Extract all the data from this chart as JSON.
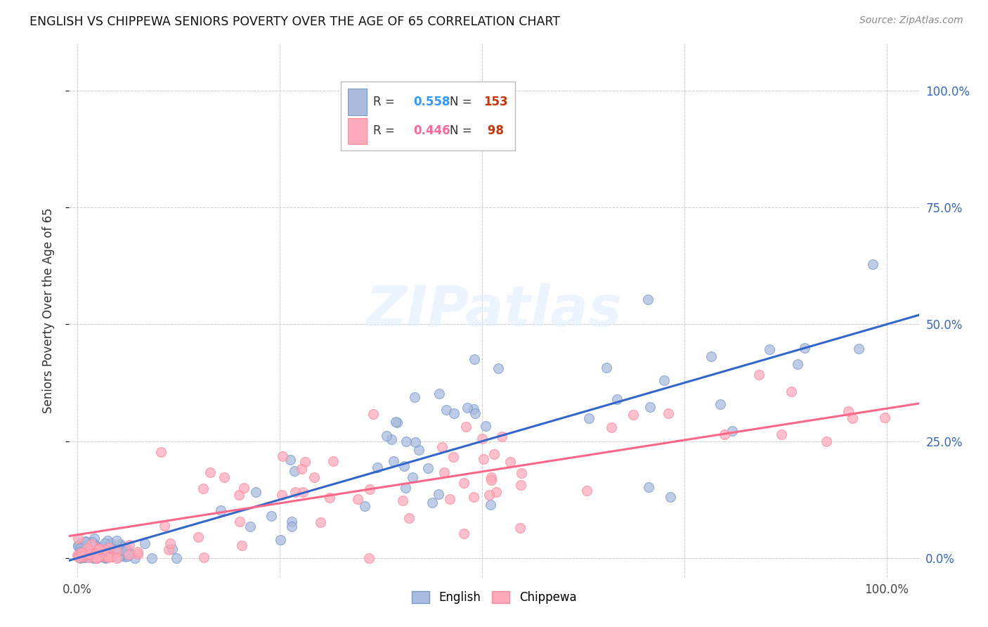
{
  "title": "ENGLISH VS CHIPPEWA SENIORS POVERTY OVER THE AGE OF 65 CORRELATION CHART",
  "source": "Source: ZipAtlas.com",
  "ylabel": "Seniors Poverty Over the Age of 65",
  "english_R": 0.558,
  "english_N": 153,
  "chippewa_R": 0.446,
  "chippewa_N": 98,
  "english_fill_color": "#AABBDD",
  "chippewa_fill_color": "#FFAABB",
  "english_edge_color": "#7799CC",
  "chippewa_edge_color": "#FF8899",
  "english_line_color": "#3366CC",
  "chippewa_line_color": "#FF6688",
  "watermark": "ZIPatlas",
  "legend_R_color_english": "#3399FF",
  "legend_R_color_chippewa": "#FF6699",
  "legend_N_color_english": "#CC3300",
  "legend_N_color_chippewa": "#CC3300",
  "background_color": "#FFFFFF",
  "grid_color": "#CCCCCC",
  "ytick_labels_right": [
    "0.0%",
    "25.0%",
    "50.0%",
    "75.0%",
    "100.0%"
  ],
  "ytick_values": [
    0,
    0.25,
    0.5,
    0.75,
    1.0
  ],
  "xtick_edge_labels": [
    "0.0%",
    "100.0%"
  ],
  "xtick_edge_values": [
    0,
    1.0
  ]
}
